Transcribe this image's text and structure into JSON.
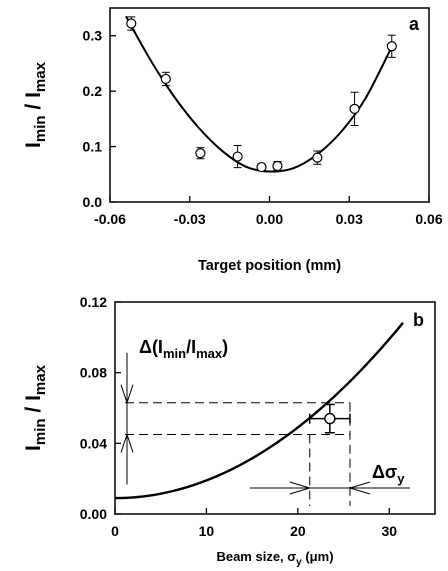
{
  "chart_data": [
    {
      "type": "scatter",
      "panel_label": "a",
      "xlabel": "Target position (mm)",
      "ylabel_main": "I",
      "ylabel_sub1": "min",
      "ylabel_sep": " / I",
      "ylabel_sub2": "max",
      "xlim": [
        -0.06,
        0.06
      ],
      "ylim": [
        0.0,
        0.35
      ],
      "xticks": [
        "-0.06",
        "-0.03",
        "0.00",
        "0.03",
        "0.06"
      ],
      "yticks": [
        "0.0",
        "0.1",
        "0.2",
        "0.3"
      ],
      "grid": false,
      "series": [
        {
          "marker": "open-circle",
          "x": [
            -0.052,
            -0.039,
            -0.026,
            -0.012,
            -0.003,
            0.003,
            0.018,
            0.032,
            0.046
          ],
          "y": [
            0.322,
            0.222,
            0.088,
            0.082,
            0.063,
            0.065,
            0.08,
            0.168,
            0.281
          ],
          "yerr": [
            0.012,
            0.012,
            0.01,
            0.02,
            0.006,
            0.008,
            0.012,
            0.03,
            0.02
          ]
        },
        {
          "line": "fit",
          "x": [
            -0.054,
            -0.045,
            -0.036,
            -0.027,
            -0.018,
            -0.009,
            0.0,
            0.009,
            0.018,
            0.027,
            0.036,
            0.046
          ],
          "y": [
            0.335,
            0.258,
            0.191,
            0.136,
            0.093,
            0.064,
            0.055,
            0.061,
            0.086,
            0.127,
            0.186,
            0.28
          ]
        }
      ]
    },
    {
      "type": "line",
      "panel_label": "b",
      "xlabel_main": "Beam size, σ",
      "xlabel_sub": "y",
      "xlabel_unit": " (μm)",
      "ylabel_main": "I",
      "ylabel_sub1": "min",
      "ylabel_sep": " / I",
      "ylabel_sub2": "max",
      "xlim": [
        0,
        35
      ],
      "ylim": [
        0.0,
        0.12
      ],
      "xticks": [
        "0",
        "10",
        "20",
        "30"
      ],
      "yticks": [
        "0.00",
        "0.04",
        "0.08",
        "0.12"
      ],
      "grid": false,
      "series": [
        {
          "line": "curve",
          "x": [
            0,
            5,
            10,
            15,
            20,
            25,
            30,
            35
          ],
          "y": [
            0.009,
            0.0115,
            0.019,
            0.0315,
            0.049,
            0.0715,
            0.099,
            0.1315
          ]
        },
        {
          "marker": "open-circle",
          "x": [
            23.5
          ],
          "y": [
            0.054
          ],
          "xerr": [
            2.2
          ],
          "yerr": [
            0.008
          ]
        }
      ],
      "annotations": {
        "delta_ratio": {
          "prefix": "Δ(I",
          "sub1": "min",
          "mid": "/I",
          "sub2": "max",
          "suffix": ")"
        },
        "delta_sigma": {
          "prefix": "Δσ",
          "sub": "y"
        },
        "dashed_y": [
          0.045,
          0.063
        ],
        "dashed_x": [
          21.3,
          25.7
        ]
      }
    }
  ]
}
